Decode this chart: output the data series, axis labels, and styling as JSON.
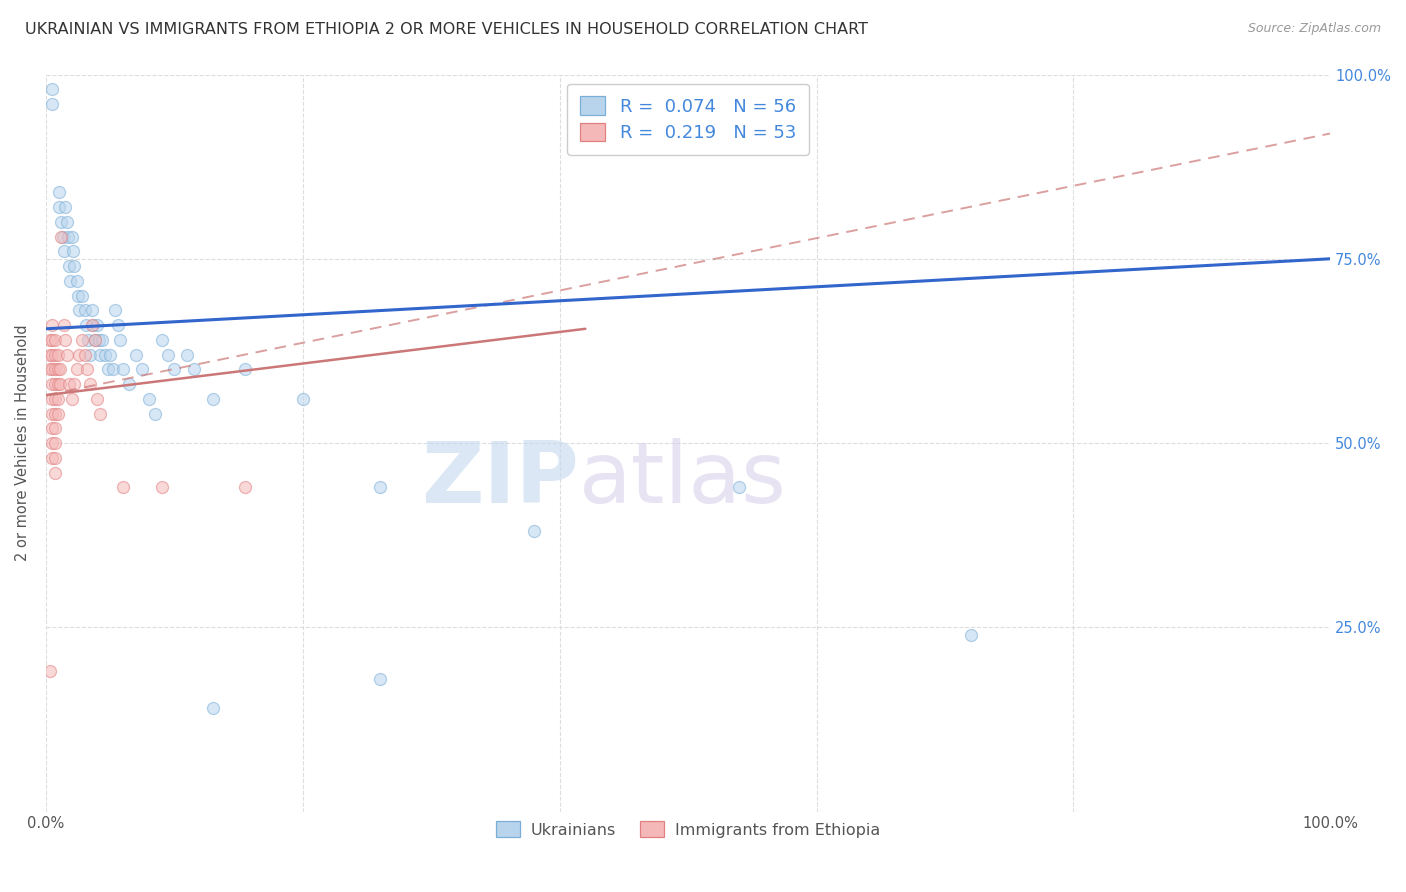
{
  "title": "UKRAINIAN VS IMMIGRANTS FROM ETHIOPIA 2 OR MORE VEHICLES IN HOUSEHOLD CORRELATION CHART",
  "source": "Source: ZipAtlas.com",
  "ylabel": "2 or more Vehicles in Household",
  "xlim": [
    0,
    1.0
  ],
  "ylim": [
    0,
    1.0
  ],
  "legend_labels_bottom": [
    "Ukrainians",
    "Immigrants from Ethiopia"
  ],
  "watermark_zip": "ZIP",
  "watermark_atlas": "atlas",
  "ukrainian_dots": [
    [
      0.005,
      0.96
    ],
    [
      0.005,
      0.98
    ],
    [
      0.01,
      0.84
    ],
    [
      0.01,
      0.82
    ],
    [
      0.012,
      0.8
    ],
    [
      0.013,
      0.78
    ],
    [
      0.014,
      0.76
    ],
    [
      0.015,
      0.82
    ],
    [
      0.016,
      0.8
    ],
    [
      0.017,
      0.78
    ],
    [
      0.018,
      0.74
    ],
    [
      0.019,
      0.72
    ],
    [
      0.02,
      0.78
    ],
    [
      0.021,
      0.76
    ],
    [
      0.022,
      0.74
    ],
    [
      0.024,
      0.72
    ],
    [
      0.025,
      0.7
    ],
    [
      0.026,
      0.68
    ],
    [
      0.028,
      0.7
    ],
    [
      0.03,
      0.68
    ],
    [
      0.031,
      0.66
    ],
    [
      0.033,
      0.64
    ],
    [
      0.034,
      0.62
    ],
    [
      0.036,
      0.68
    ],
    [
      0.037,
      0.66
    ],
    [
      0.038,
      0.64
    ],
    [
      0.04,
      0.66
    ],
    [
      0.041,
      0.64
    ],
    [
      0.042,
      0.62
    ],
    [
      0.044,
      0.64
    ],
    [
      0.046,
      0.62
    ],
    [
      0.048,
      0.6
    ],
    [
      0.05,
      0.62
    ],
    [
      0.052,
      0.6
    ],
    [
      0.054,
      0.68
    ],
    [
      0.056,
      0.66
    ],
    [
      0.058,
      0.64
    ],
    [
      0.06,
      0.6
    ],
    [
      0.065,
      0.58
    ],
    [
      0.07,
      0.62
    ],
    [
      0.075,
      0.6
    ],
    [
      0.08,
      0.56
    ],
    [
      0.085,
      0.54
    ],
    [
      0.09,
      0.64
    ],
    [
      0.095,
      0.62
    ],
    [
      0.1,
      0.6
    ],
    [
      0.11,
      0.62
    ],
    [
      0.115,
      0.6
    ],
    [
      0.13,
      0.56
    ],
    [
      0.155,
      0.6
    ],
    [
      0.2,
      0.56
    ],
    [
      0.26,
      0.44
    ],
    [
      0.38,
      0.38
    ],
    [
      0.54,
      0.44
    ],
    [
      0.13,
      0.14
    ],
    [
      0.26,
      0.18
    ],
    [
      0.72,
      0.24
    ]
  ],
  "ethiopia_dots": [
    [
      0.003,
      0.64
    ],
    [
      0.003,
      0.62
    ],
    [
      0.003,
      0.6
    ],
    [
      0.005,
      0.66
    ],
    [
      0.005,
      0.64
    ],
    [
      0.005,
      0.62
    ],
    [
      0.005,
      0.6
    ],
    [
      0.005,
      0.58
    ],
    [
      0.005,
      0.56
    ],
    [
      0.005,
      0.54
    ],
    [
      0.005,
      0.52
    ],
    [
      0.005,
      0.5
    ],
    [
      0.005,
      0.48
    ],
    [
      0.007,
      0.64
    ],
    [
      0.007,
      0.62
    ],
    [
      0.007,
      0.6
    ],
    [
      0.007,
      0.58
    ],
    [
      0.007,
      0.56
    ],
    [
      0.007,
      0.54
    ],
    [
      0.007,
      0.52
    ],
    [
      0.007,
      0.5
    ],
    [
      0.007,
      0.48
    ],
    [
      0.007,
      0.46
    ],
    [
      0.009,
      0.62
    ],
    [
      0.009,
      0.6
    ],
    [
      0.009,
      0.58
    ],
    [
      0.009,
      0.56
    ],
    [
      0.009,
      0.54
    ],
    [
      0.011,
      0.6
    ],
    [
      0.011,
      0.58
    ],
    [
      0.012,
      0.78
    ],
    [
      0.014,
      0.66
    ],
    [
      0.015,
      0.64
    ],
    [
      0.016,
      0.62
    ],
    [
      0.018,
      0.58
    ],
    [
      0.02,
      0.56
    ],
    [
      0.022,
      0.58
    ],
    [
      0.024,
      0.6
    ],
    [
      0.026,
      0.62
    ],
    [
      0.028,
      0.64
    ],
    [
      0.03,
      0.62
    ],
    [
      0.032,
      0.6
    ],
    [
      0.034,
      0.58
    ],
    [
      0.036,
      0.66
    ],
    [
      0.038,
      0.64
    ],
    [
      0.04,
      0.56
    ],
    [
      0.042,
      0.54
    ],
    [
      0.06,
      0.44
    ],
    [
      0.09,
      0.44
    ],
    [
      0.155,
      0.44
    ],
    [
      0.003,
      0.19
    ]
  ],
  "blue_line": {
    "x0": 0.0,
    "y0": 0.655,
    "x1": 1.0,
    "y1": 0.75
  },
  "pink_solid_line": {
    "x0": 0.0,
    "y0": 0.565,
    "x1": 0.42,
    "y1": 0.655
  },
  "pink_dash_line": {
    "x0": 0.0,
    "y0": 0.565,
    "x1": 1.0,
    "y1": 0.92
  },
  "dot_size": 75,
  "dot_alpha": 0.55,
  "dot_color_ukrainian": "#b8d4ed",
  "dot_edge_ukrainian": "#7aaed6",
  "dot_color_ethiopia": "#f5b8b8",
  "dot_edge_ethiopia": "#e08080",
  "line_color_blue": "#3366CC",
  "line_color_pink": "#CC7777",
  "grid_color": "#dddddd",
  "background_color": "#ffffff",
  "title_fontsize": 11.5,
  "label_fontsize": 10.5,
  "right_tick_color": "#4488DD"
}
